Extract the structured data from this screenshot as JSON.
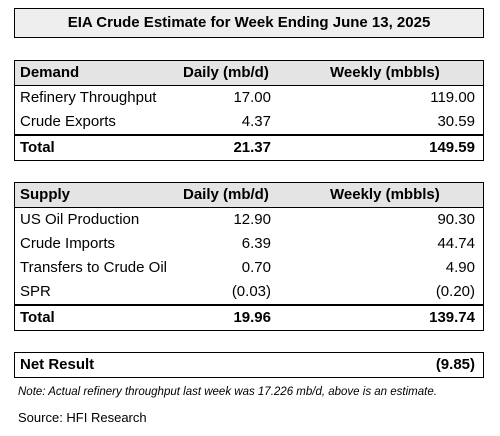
{
  "title": "EIA Crude Estimate for Week Ending June 13, 2025",
  "demand": {
    "header": [
      "Demand",
      "Daily (mb/d)",
      "Weekly (mbbls)"
    ],
    "rows": [
      [
        "Refinery Throughput",
        "17.00",
        "119.00"
      ],
      [
        "Crude Exports",
        "4.37",
        "30.59"
      ]
    ],
    "total": [
      "Total",
      "21.37",
      "149.59"
    ]
  },
  "supply": {
    "header": [
      "Supply",
      "Daily (mb/d)",
      "Weekly (mbbls)"
    ],
    "rows": [
      [
        "US Oil Production",
        "12.90",
        "90.30"
      ],
      [
        "Crude Imports",
        "6.39",
        "44.74"
      ],
      [
        "Transfers to Crude Oil",
        "0.70",
        "4.90"
      ],
      [
        "SPR",
        "(0.03)",
        "(0.20)"
      ]
    ],
    "total": [
      "Total",
      "19.96",
      "139.74"
    ]
  },
  "net_result": {
    "label": "Net Result",
    "value": "(9.85)"
  },
  "note": "Note: Actual refinery throughput last week was 17.226 mb/d, above is an estimate.",
  "source": "Source: HFI Research"
}
